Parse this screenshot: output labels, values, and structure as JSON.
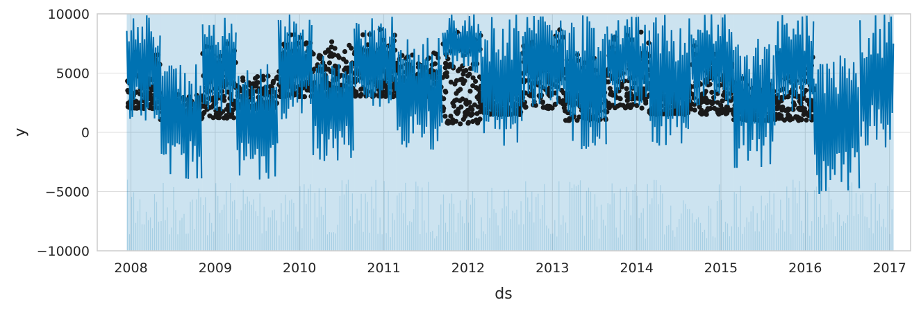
{
  "chart_data": {
    "type": "line",
    "title": "",
    "xlabel": "ds",
    "ylabel": "y",
    "xlim": [
      2007.6,
      2017.25
    ],
    "ylim": [
      -10000,
      10000
    ],
    "x_ticks": [
      {
        "value": 2008,
        "label": "2008"
      },
      {
        "value": 2009,
        "label": "2009"
      },
      {
        "value": 2010,
        "label": "2010"
      },
      {
        "value": 2011,
        "label": "2011"
      },
      {
        "value": 2012,
        "label": "2012"
      },
      {
        "value": 2013,
        "label": "2013"
      },
      {
        "value": 2014,
        "label": "2014"
      },
      {
        "value": 2015,
        "label": "2015"
      },
      {
        "value": 2016,
        "label": "2016"
      },
      {
        "value": 2017,
        "label": "2017"
      }
    ],
    "y_ticks": [
      {
        "value": -10000,
        "label": "−10000"
      },
      {
        "value": -5000,
        "label": "−5000"
      },
      {
        "value": 0,
        "label": "0"
      },
      {
        "value": 5000,
        "label": "5000"
      },
      {
        "value": 10000,
        "label": "10000"
      }
    ],
    "grid": true,
    "colors": {
      "forecast": "#0072B2",
      "interval": "#0072B2",
      "observed": "#1a1a1a",
      "grid": "#dddddd",
      "axes": "#cccccc"
    },
    "series": [
      {
        "kind": "observed",
        "marker": "dot",
        "segments": [
          {
            "start": 2007.95,
            "end": 2008.35,
            "low": 2000,
            "high": 7500
          },
          {
            "start": 2008.35,
            "end": 2008.85,
            "low": 1000,
            "high": 3500
          },
          {
            "start": 2008.85,
            "end": 2009.25,
            "low": 1200,
            "high": 7500
          },
          {
            "start": 2009.25,
            "end": 2009.75,
            "low": 2000,
            "high": 5000
          },
          {
            "start": 2009.75,
            "end": 2010.15,
            "low": 3000,
            "high": 9000
          },
          {
            "start": 2010.15,
            "end": 2010.65,
            "low": 3000,
            "high": 8000
          },
          {
            "start": 2010.65,
            "end": 2011.15,
            "low": 3000,
            "high": 9000
          },
          {
            "start": 2011.15,
            "end": 2011.7,
            "low": 3000,
            "high": 7000
          },
          {
            "start": 2011.7,
            "end": 2012.15,
            "low": 700,
            "high": 9500
          },
          {
            "start": 2012.15,
            "end": 2012.65,
            "low": 1500,
            "high": 5000
          },
          {
            "start": 2012.65,
            "end": 2013.15,
            "low": 2000,
            "high": 9000
          },
          {
            "start": 2013.15,
            "end": 2013.65,
            "low": 1000,
            "high": 7000
          },
          {
            "start": 2013.65,
            "end": 2014.15,
            "low": 2000,
            "high": 9000
          },
          {
            "start": 2014.15,
            "end": 2014.65,
            "low": 1500,
            "high": 5000
          },
          {
            "start": 2014.65,
            "end": 2015.15,
            "low": 1500,
            "high": 8000
          },
          {
            "start": 2015.15,
            "end": 2015.65,
            "low": 1000,
            "high": 5000
          },
          {
            "start": 2015.65,
            "end": 2016.1,
            "low": 1000,
            "high": 7000
          }
        ]
      },
      {
        "kind": "forecast",
        "segments": [
          {
            "start": 2007.95,
            "end": 2008.35,
            "low": 1000,
            "high": 10000
          },
          {
            "start": 2008.35,
            "end": 2008.85,
            "low": -4000,
            "high": 6000
          },
          {
            "start": 2008.85,
            "end": 2009.25,
            "low": 1000,
            "high": 10000
          },
          {
            "start": 2009.25,
            "end": 2009.75,
            "low": -4000,
            "high": 6000
          },
          {
            "start": 2009.75,
            "end": 2010.15,
            "low": 1000,
            "high": 10000
          },
          {
            "start": 2010.15,
            "end": 2010.65,
            "low": -2500,
            "high": 7000
          },
          {
            "start": 2010.65,
            "end": 2011.15,
            "low": 2000,
            "high": 10000
          },
          {
            "start": 2011.15,
            "end": 2011.7,
            "low": -1500,
            "high": 8000
          },
          {
            "start": 2011.7,
            "end": 2012.15,
            "low": 5000,
            "high": 10000
          },
          {
            "start": 2012.15,
            "end": 2012.65,
            "low": -1500,
            "high": 10000
          },
          {
            "start": 2012.65,
            "end": 2013.15,
            "low": 2000,
            "high": 10000
          },
          {
            "start": 2013.15,
            "end": 2013.65,
            "low": -1500,
            "high": 10000
          },
          {
            "start": 2013.65,
            "end": 2014.15,
            "low": 2000,
            "high": 10000
          },
          {
            "start": 2014.15,
            "end": 2014.65,
            "low": -1500,
            "high": 10000
          },
          {
            "start": 2014.65,
            "end": 2015.15,
            "low": 2000,
            "high": 10000
          },
          {
            "start": 2015.15,
            "end": 2015.65,
            "low": -3000,
            "high": 8000
          },
          {
            "start": 2015.65,
            "end": 2016.1,
            "low": 1000,
            "high": 10000
          },
          {
            "start": 2016.1,
            "end": 2016.65,
            "low": -5500,
            "high": 6500
          },
          {
            "start": 2016.65,
            "end": 2017.05,
            "low": -1500,
            "high": 10000
          }
        ]
      },
      {
        "kind": "uncertainty_interval",
        "segments": [
          {
            "start": 2007.95,
            "end": 2008.35,
            "low": -10000,
            "high": 10000
          },
          {
            "start": 2008.35,
            "end": 2008.85,
            "low": -10000,
            "high": 10000
          },
          {
            "start": 2008.85,
            "end": 2009.25,
            "low": -10000,
            "high": 10000
          },
          {
            "start": 2009.25,
            "end": 2009.75,
            "low": -10000,
            "high": 10000
          },
          {
            "start": 2009.75,
            "end": 2010.15,
            "low": -10000,
            "high": 10000
          },
          {
            "start": 2010.15,
            "end": 2010.65,
            "low": -10000,
            "high": 10000
          },
          {
            "start": 2010.65,
            "end": 2011.15,
            "low": -10000,
            "high": 10000
          },
          {
            "start": 2011.15,
            "end": 2011.7,
            "low": -10000,
            "high": 10000
          },
          {
            "start": 2011.7,
            "end": 2012.15,
            "low": -10000,
            "high": 10000
          },
          {
            "start": 2012.15,
            "end": 2012.65,
            "low": -10000,
            "high": 10000
          },
          {
            "start": 2012.65,
            "end": 2013.15,
            "low": -10000,
            "high": 10000
          },
          {
            "start": 2013.15,
            "end": 2013.65,
            "low": -10000,
            "high": 10000
          },
          {
            "start": 2013.65,
            "end": 2014.15,
            "low": -10000,
            "high": 10000
          },
          {
            "start": 2014.15,
            "end": 2014.65,
            "low": -10000,
            "high": 10000
          },
          {
            "start": 2014.65,
            "end": 2015.15,
            "low": -10000,
            "high": 10000
          },
          {
            "start": 2015.15,
            "end": 2015.65,
            "low": -10000,
            "high": 10000
          },
          {
            "start": 2015.65,
            "end": 2016.1,
            "low": -10000,
            "high": 10000
          },
          {
            "start": 2016.1,
            "end": 2016.65,
            "low": -10000,
            "high": 10000
          },
          {
            "start": 2016.65,
            "end": 2017.05,
            "low": -10000,
            "high": 10000
          }
        ]
      }
    ]
  }
}
